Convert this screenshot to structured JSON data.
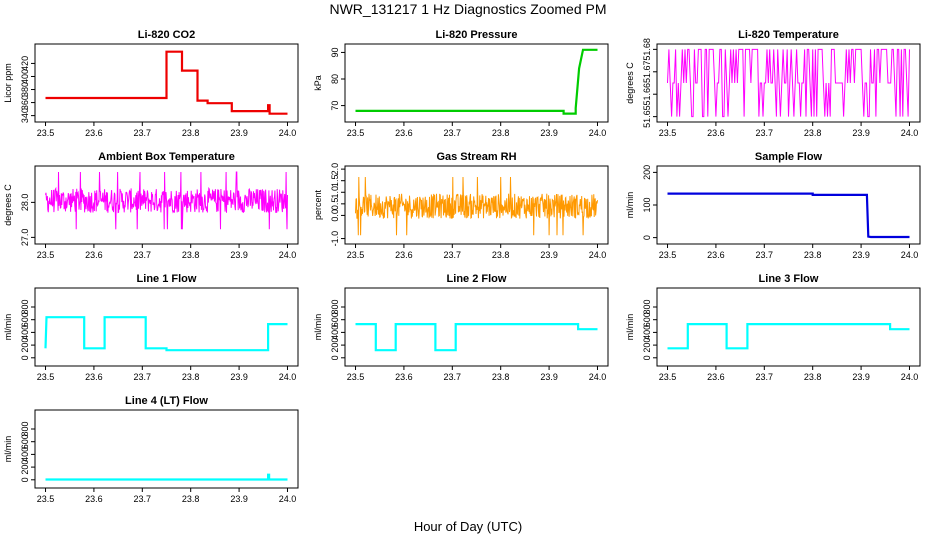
{
  "figure": {
    "title": "NWR_131217  1 Hz Diagnostics Zoomed PM",
    "xlabel": "Hour of Day (UTC)"
  },
  "chart_data": [
    {
      "type": "line",
      "title": "Li-820 CO2",
      "xlabel": "",
      "ylabel": "Licor ppm",
      "color": "#ee0000",
      "xlim": [
        23.5,
        24.0
      ],
      "ylim": [
        335,
        445
      ],
      "xticks": [
        "23.5",
        "23.6",
        "23.7",
        "23.8",
        "23.9",
        "24.0"
      ],
      "yticks": [
        "340",
        "360",
        "380",
        "400",
        "420"
      ],
      "series": [
        {
          "x": [
            23.5,
            23.6,
            23.7,
            23.75,
            23.75,
            23.782,
            23.782,
            23.814,
            23.814,
            23.835,
            23.835,
            23.885,
            23.885,
            23.96,
            23.96,
            23.963,
            23.963,
            24.0
          ],
          "y": [
            367,
            367,
            367,
            367,
            438,
            438,
            409,
            409,
            363,
            363,
            359,
            359,
            347,
            347,
            356,
            356,
            343,
            343
          ]
        }
      ]
    },
    {
      "type": "line",
      "title": "Li-820 Pressure",
      "xlabel": "",
      "ylabel": "kPa",
      "color": "#00cc00",
      "xlim": [
        23.5,
        24.0
      ],
      "ylim": [
        65,
        92
      ],
      "xticks": [
        "23.5",
        "23.6",
        "23.7",
        "23.8",
        "23.9",
        "24.0"
      ],
      "yticks": [
        "70",
        "80",
        "90"
      ],
      "series": [
        {
          "x": [
            23.5,
            23.7,
            23.93,
            23.93,
            23.955,
            23.955,
            23.962,
            23.97,
            24.0
          ],
          "y": [
            68,
            68,
            68,
            67,
            67,
            69,
            84,
            91,
            91
          ]
        }
      ]
    },
    {
      "type": "line",
      "title": "Li-820 Temperature",
      "xlabel": "",
      "ylabel": "degrees C",
      "color": "#ff00ff",
      "xlim": [
        23.5,
        24.0
      ],
      "ylim": [
        51.649,
        51.681
      ],
      "xticks": [
        "23.5",
        "23.6",
        "23.7",
        "23.8",
        "23.9",
        "24.0"
      ],
      "yticks": [
        "51.65",
        "51.66",
        "51.67",
        "51.68"
      ],
      "series": [
        {
          "levels": [
            51.65,
            51.665,
            51.68
          ]
        }
      ]
    },
    {
      "type": "line",
      "title": "Ambient Box Temperature",
      "xlabel": "",
      "ylabel": "degrees C",
      "color": "#ff00ff",
      "xlim": [
        23.5,
        24.0
      ],
      "ylim": [
        26.9,
        28.95
      ],
      "xticks": [
        "23.5",
        "23.6",
        "23.7",
        "23.8",
        "23.9",
        "24.0"
      ],
      "yticks": [
        "27.0",
        "28.0"
      ],
      "series": [
        {
          "mean": 28.05,
          "range": [
            27.0,
            28.95
          ]
        }
      ]
    },
    {
      "type": "line",
      "title": "Gas Stream RH",
      "xlabel": "",
      "ylabel": "percent",
      "color": "#ff9900",
      "xlim": [
        23.5,
        24.0
      ],
      "ylim": [
        -1.1,
        2.0
      ],
      "xticks": [
        "23.5",
        "23.6",
        "23.7",
        "23.8",
        "23.9",
        "24.0"
      ],
      "yticks": [
        "-1.0",
        "0.0",
        "0.5",
        "1.0",
        "1.5",
        "2.0"
      ],
      "series": [
        {
          "mean": 0.4,
          "range": [
            -1.1,
            1.9
          ]
        }
      ]
    },
    {
      "type": "line",
      "title": "Sample Flow",
      "xlabel": "",
      "ylabel": "ml/min",
      "color": "#0000dd",
      "xlim": [
        23.5,
        24.0
      ],
      "ylim": [
        -10,
        210
      ],
      "xticks": [
        "23.5",
        "23.6",
        "23.7",
        "23.8",
        "23.9",
        "24.0"
      ],
      "yticks": [
        "0",
        "100",
        "200"
      ],
      "series": [
        {
          "x": [
            23.5,
            23.8,
            23.8,
            23.912,
            23.915,
            23.92,
            24.0
          ],
          "y": [
            135,
            135,
            131,
            131,
            3,
            2,
            2
          ]
        }
      ]
    },
    {
      "type": "line",
      "title": "Line 1 Flow",
      "xlabel": "",
      "ylabel": "ml/min",
      "color": "#00ffff",
      "xlim": [
        23.5,
        24.0
      ],
      "ylim": [
        -80,
        1050
      ],
      "xticks": [
        "23.5",
        "23.6",
        "23.7",
        "23.8",
        "23.9",
        "24.0"
      ],
      "yticks": [
        "0",
        "200",
        "400",
        "600",
        "800"
      ],
      "series": [
        {
          "x": [
            23.5,
            23.502,
            23.58,
            23.58,
            23.622,
            23.622,
            23.707,
            23.707,
            23.75,
            23.75,
            23.96,
            23.96,
            24.0
          ],
          "y": [
            150,
            640,
            640,
            150,
            150,
            640,
            640,
            150,
            150,
            120,
            120,
            530,
            530
          ]
        }
      ]
    },
    {
      "type": "line",
      "title": "Line 2 Flow",
      "xlabel": "",
      "ylabel": "ml/min",
      "color": "#00ffff",
      "xlim": [
        23.5,
        24.0
      ],
      "ylim": [
        -80,
        1050
      ],
      "xticks": [
        "23.5",
        "23.6",
        "23.7",
        "23.8",
        "23.9",
        "24.0"
      ],
      "yticks": [
        "0",
        "200",
        "400",
        "600",
        "800"
      ],
      "series": [
        {
          "x": [
            23.5,
            23.542,
            23.542,
            23.583,
            23.583,
            23.665,
            23.665,
            23.707,
            23.707,
            23.96,
            23.96,
            24.0
          ],
          "y": [
            530,
            530,
            120,
            120,
            530,
            530,
            120,
            120,
            530,
            530,
            450,
            450
          ]
        }
      ]
    },
    {
      "type": "line",
      "title": "Line 3 Flow",
      "xlabel": "",
      "ylabel": "ml/min",
      "color": "#00ffff",
      "xlim": [
        23.5,
        24.0
      ],
      "ylim": [
        -80,
        1050
      ],
      "xticks": [
        "23.5",
        "23.6",
        "23.7",
        "23.8",
        "23.9",
        "24.0"
      ],
      "yticks": [
        "0",
        "200",
        "400",
        "600",
        "800"
      ],
      "series": [
        {
          "x": [
            23.5,
            23.502,
            23.542,
            23.542,
            23.622,
            23.622,
            23.665,
            23.665,
            23.96,
            23.96,
            24.0
          ],
          "y": [
            150,
            150,
            150,
            530,
            530,
            150,
            150,
            530,
            530,
            450,
            450
          ]
        }
      ]
    },
    {
      "type": "line",
      "title": "Line 4 (LT) Flow",
      "xlabel": "",
      "ylabel": "ml/min",
      "color": "#00ffff",
      "xlim": [
        23.5,
        24.0
      ],
      "ylim": [
        -80,
        1050
      ],
      "xticks": [
        "23.5",
        "23.6",
        "23.7",
        "23.8",
        "23.9",
        "24.0"
      ],
      "yticks": [
        "0",
        "200",
        "400",
        "600",
        "800"
      ],
      "series": [
        {
          "x": [
            23.5,
            23.96,
            23.96,
            23.962,
            23.962,
            24.0
          ],
          "y": [
            5,
            5,
            80,
            80,
            5,
            5
          ]
        }
      ]
    }
  ]
}
